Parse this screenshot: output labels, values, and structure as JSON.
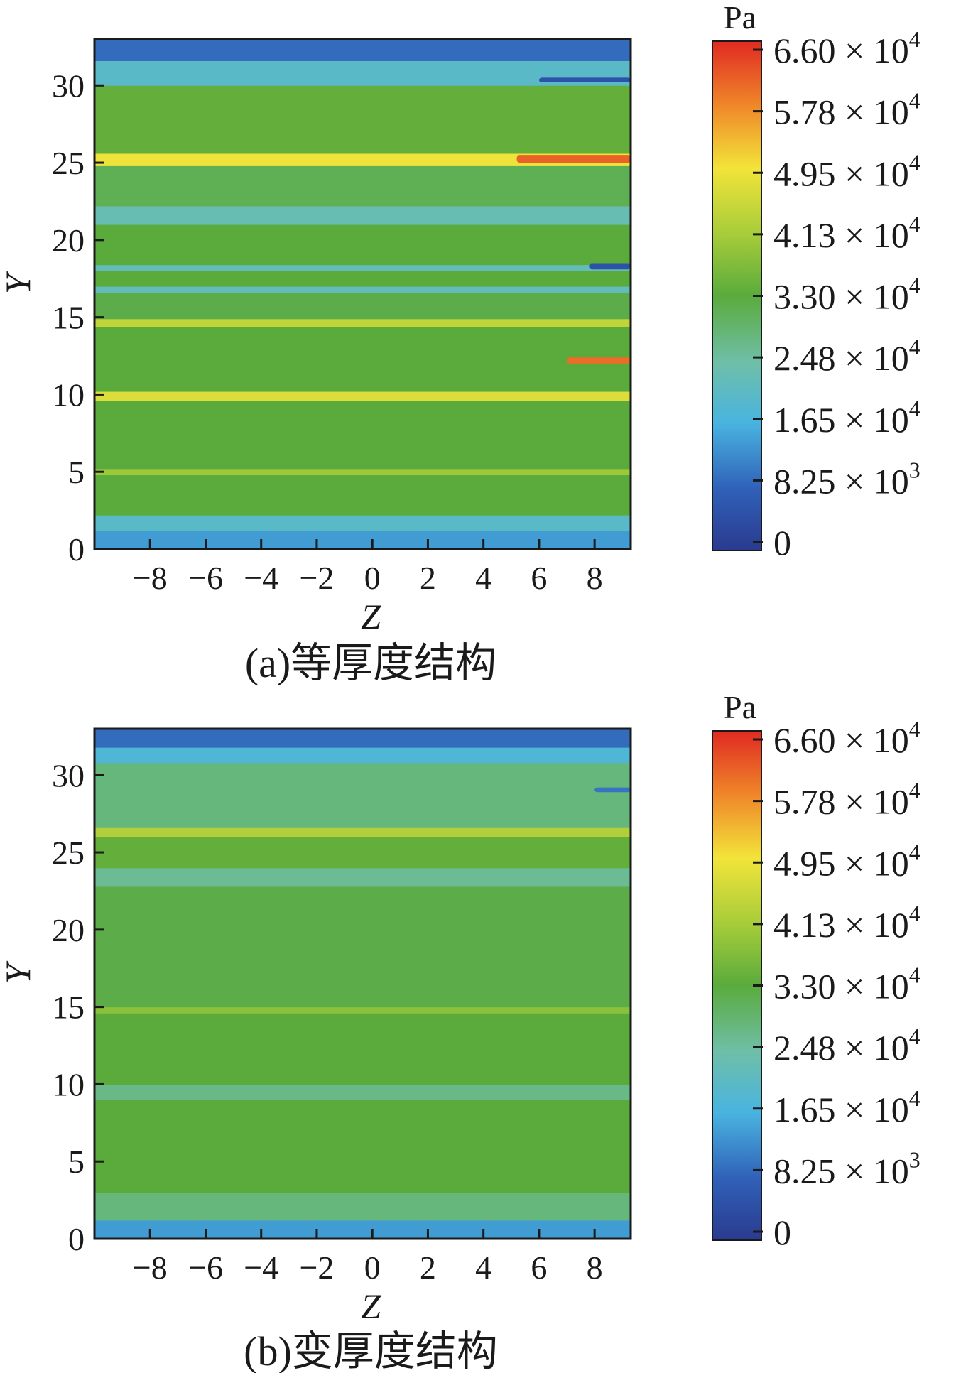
{
  "chart_data": [
    {
      "type": "heatmap",
      "caption": "(a)等厚度结构",
      "xlabel": "Z",
      "ylabel": "Y",
      "xlim": [
        -10,
        9.3
      ],
      "ylim": [
        0,
        33
      ],
      "xticks": [
        "-8",
        "-6",
        "-4",
        "-2",
        "0",
        "2",
        "4",
        "6",
        "8"
      ],
      "yticks": [
        "0",
        "5",
        "10",
        "15",
        "20",
        "25",
        "30"
      ],
      "colorbar": {
        "unit": "Pa",
        "labels": [
          {
            "base": "6.60 × 10",
            "exp": "4"
          },
          {
            "base": "5.78 × 10",
            "exp": "4"
          },
          {
            "base": "4.95 × 10",
            "exp": "4"
          },
          {
            "base": "4.13 × 10",
            "exp": "4"
          },
          {
            "base": "3.30 × 10",
            "exp": "4"
          },
          {
            "base": "2.48 × 10",
            "exp": "4"
          },
          {
            "base": "1.65 × 10",
            "exp": "4"
          },
          {
            "base": "8.25 × 10",
            "exp": "3"
          },
          {
            "base": "0",
            "exp": ""
          }
        ]
      },
      "bands": [
        {
          "y0": 0,
          "y1": 1.2,
          "v": 14000
        },
        {
          "y0": 1.2,
          "y1": 2.2,
          "v": 20000
        },
        {
          "y0": 2.2,
          "y1": 4.8,
          "v": 33000
        },
        {
          "y0": 4.8,
          "y1": 5.2,
          "v": 40000
        },
        {
          "y0": 5.2,
          "y1": 9.6,
          "v": 33000
        },
        {
          "y0": 9.6,
          "y1": 10.2,
          "v": 47000
        },
        {
          "y0": 10.2,
          "y1": 14.4,
          "v": 33000
        },
        {
          "y0": 14.4,
          "y1": 14.9,
          "v": 44000
        },
        {
          "y0": 14.9,
          "y1": 16.6,
          "v": 32000
        },
        {
          "y0": 16.6,
          "y1": 17.0,
          "v": 22000
        },
        {
          "y0": 17.0,
          "y1": 18.0,
          "v": 33000
        },
        {
          "y0": 18.0,
          "y1": 18.4,
          "v": 22000
        },
        {
          "y0": 18.4,
          "y1": 21.0,
          "v": 33000
        },
        {
          "y0": 21.0,
          "y1": 22.2,
          "v": 23000
        },
        {
          "y0": 22.2,
          "y1": 24.8,
          "v": 31000
        },
        {
          "y0": 24.8,
          "y1": 25.6,
          "v": 49000
        },
        {
          "y0": 25.6,
          "y1": 30.0,
          "v": 34000
        },
        {
          "y0": 30.0,
          "y1": 31.6,
          "v": 20000
        },
        {
          "y0": 31.6,
          "y1": 33.0,
          "v": 9000
        }
      ],
      "hotspots": [
        {
          "z0": 5.2,
          "z1": 9.3,
          "y0": 25.0,
          "y1": 25.5,
          "v": 61000
        },
        {
          "z0": 7.0,
          "z1": 9.3,
          "y0": 12.0,
          "y1": 12.4,
          "v": 60000
        },
        {
          "z0": 6.0,
          "z1": 9.3,
          "y0": 30.2,
          "y1": 30.5,
          "v": 5000
        },
        {
          "z0": 7.8,
          "z1": 9.3,
          "y0": 18.1,
          "y1": 18.5,
          "v": 5000
        }
      ]
    },
    {
      "type": "heatmap",
      "caption": "(b)变厚度结构",
      "xlabel": "Z",
      "ylabel": "Y",
      "xlim": [
        -10,
        9.3
      ],
      "ylim": [
        0,
        33
      ],
      "xticks": [
        "-8",
        "-6",
        "-4",
        "-2",
        "0",
        "2",
        "4",
        "6",
        "8"
      ],
      "yticks": [
        "0",
        "5",
        "10",
        "15",
        "20",
        "25",
        "30"
      ],
      "colorbar": {
        "unit": "Pa",
        "labels": [
          {
            "base": "6.60 × 10",
            "exp": "4"
          },
          {
            "base": "5.78 × 10",
            "exp": "4"
          },
          {
            "base": "4.95 × 10",
            "exp": "4"
          },
          {
            "base": "4.13 × 10",
            "exp": "4"
          },
          {
            "base": "3.30 × 10",
            "exp": "4"
          },
          {
            "base": "2.48 × 10",
            "exp": "4"
          },
          {
            "base": "1.65 × 10",
            "exp": "4"
          },
          {
            "base": "8.25 × 10",
            "exp": "3"
          },
          {
            "base": "0",
            "exp": ""
          }
        ]
      },
      "bands": [
        {
          "y0": 0,
          "y1": 1.2,
          "v": 14000
        },
        {
          "y0": 1.2,
          "y1": 3.0,
          "v": 28000
        },
        {
          "y0": 3.0,
          "y1": 9.0,
          "v": 33000
        },
        {
          "y0": 9.0,
          "y1": 10.0,
          "v": 27000
        },
        {
          "y0": 10.0,
          "y1": 14.6,
          "v": 33000
        },
        {
          "y0": 14.6,
          "y1": 15.0,
          "v": 38000
        },
        {
          "y0": 15.0,
          "y1": 22.8,
          "v": 32000
        },
        {
          "y0": 22.8,
          "y1": 24.0,
          "v": 26000
        },
        {
          "y0": 24.0,
          "y1": 26.0,
          "v": 34000
        },
        {
          "y0": 26.0,
          "y1": 26.6,
          "v": 42000
        },
        {
          "y0": 26.6,
          "y1": 30.8,
          "v": 28000
        },
        {
          "y0": 30.8,
          "y1": 31.8,
          "v": 18000
        },
        {
          "y0": 31.8,
          "y1": 33.0,
          "v": 9000
        }
      ],
      "hotspots": [
        {
          "z0": 8.0,
          "z1": 9.3,
          "y0": 28.9,
          "y1": 29.2,
          "v": 10000
        }
      ]
    }
  ]
}
